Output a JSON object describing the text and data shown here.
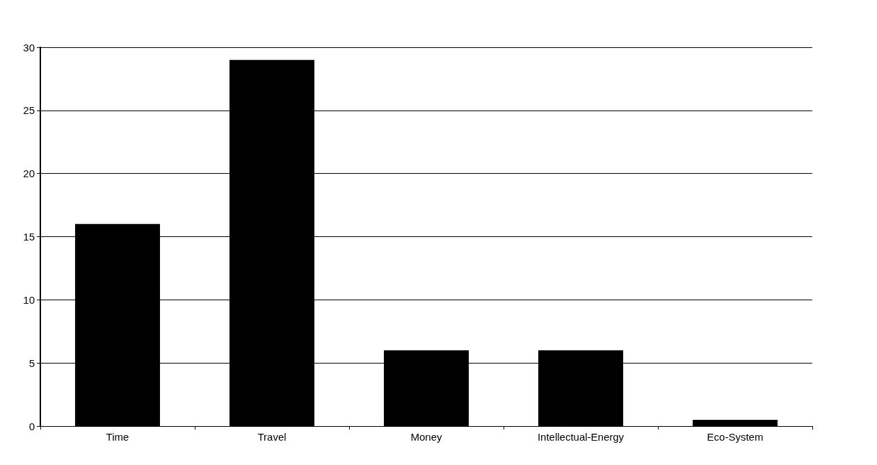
{
  "chart_data": {
    "type": "bar",
    "categories": [
      "Time",
      "Travel",
      "Money",
      "Intellectual-Energy",
      "Eco-System"
    ],
    "values": [
      16,
      29,
      6,
      6,
      0.5
    ],
    "color": "#000000",
    "ylim": [
      0,
      30
    ],
    "yticks": [
      0,
      5,
      10,
      15,
      20,
      25,
      30
    ],
    "grid": "y"
  }
}
